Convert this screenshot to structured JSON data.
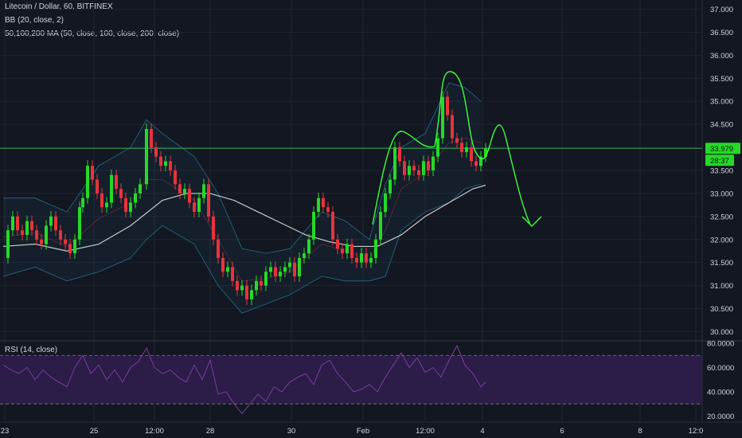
{
  "header": {
    "title": "Litecoin / Dollar, 60, BITFINEX",
    "bb_label": "BB (20, close, 2)",
    "ma_label": "50,100,200 MA (50, close, 100, close, 200, close)",
    "rsi_label": "RSI (14, close)"
  },
  "colors": {
    "background": "#131722",
    "grid": "#1f2433",
    "bullish": "#26d926",
    "bearish": "#e8333c",
    "price_line": "#34a853",
    "price_badge": "#26d926",
    "drawing": "#3dff3d",
    "ma": "#c9c9c9",
    "rsi": "#7b3d9e",
    "rsi_band": "#2b1c48"
  },
  "price_badge": {
    "price": "33.979",
    "countdown": "28:37"
  },
  "chart_data": [
    {
      "type": "candlestick",
      "title": "Litecoin / Dollar, 60, BITFINEX",
      "ylim": [
        29.8,
        37.2
      ],
      "y_ticks": [
        "37.000",
        "36.500",
        "36.000",
        "35.500",
        "35.000",
        "34.500",
        "34.000",
        "33.500",
        "33.000",
        "32.500",
        "32.000",
        "31.500",
        "31.000",
        "30.500",
        "30.000"
      ],
      "x_ticks": [
        "23",
        "25",
        "12:00",
        "28",
        "30",
        "Feb",
        "12:00",
        "4",
        "6",
        "8",
        "12:0"
      ],
      "last_price": 33.979,
      "series": [
        {
          "name": "Litecoin / Dollar, 60, BITFINEX",
          "kind": "close",
          "x": [
            0,
            6,
            12,
            18,
            24,
            30,
            36,
            42,
            48,
            54,
            60,
            66,
            72,
            78,
            84,
            90,
            96,
            100,
            106,
            112,
            118,
            124,
            130,
            136,
            142,
            148,
            154,
            160,
            166,
            172,
            180,
            186,
            192,
            198,
            204,
            210,
            216,
            222,
            228,
            234,
            240,
            246,
            252,
            258,
            264,
            270,
            276,
            282,
            288,
            294,
            300,
            306,
            312,
            318,
            324,
            330,
            336,
            342,
            348,
            354,
            360,
            366,
            372,
            378,
            384,
            390,
            396,
            402,
            408,
            414,
            420,
            426,
            432,
            438,
            444,
            450,
            456,
            462,
            468,
            474,
            480,
            486,
            492,
            498,
            504,
            510,
            516,
            522,
            528,
            534,
            540,
            546,
            552,
            558,
            564,
            570,
            576,
            582,
            588,
            594,
            600,
            606
          ],
          "close": [
            31.6,
            32.2,
            32.5,
            32.2,
            32.1,
            32.4,
            32.2,
            32.0,
            31.9,
            32.3,
            32.5,
            32.2,
            32.0,
            31.9,
            31.7,
            32.0,
            32.7,
            32.9,
            33.6,
            33.3,
            33.0,
            32.7,
            32.8,
            33.4,
            33.1,
            32.9,
            32.6,
            32.8,
            33.0,
            33.2,
            34.4,
            34.0,
            33.8,
            33.6,
            33.7,
            33.5,
            33.2,
            33.0,
            33.1,
            32.8,
            32.6,
            32.9,
            33.2,
            32.5,
            32.0,
            31.6,
            31.3,
            31.4,
            31.1,
            30.9,
            31.0,
            30.7,
            30.9,
            31.1,
            31.0,
            31.3,
            31.4,
            31.2,
            31.3,
            31.4,
            31.5,
            31.2,
            31.6,
            31.7,
            32.0,
            32.6,
            32.9,
            32.7,
            32.6,
            32.0,
            31.8,
            31.7,
            31.9,
            31.6,
            31.5,
            31.7,
            31.5,
            31.6,
            32.0,
            32.6,
            33.0,
            33.3,
            34.0,
            33.7,
            33.4,
            33.6,
            33.5,
            33.4,
            33.7,
            33.5,
            33.8,
            34.2,
            35.1,
            34.7,
            34.2,
            34.1,
            33.9,
            34.0,
            33.7,
            33.6,
            33.8,
            33.979
          ]
        },
        {
          "name": "BB (20, close, 2)",
          "kind": "bands",
          "x": [
            0,
            40,
            80,
            120,
            160,
            180,
            200,
            240,
            270,
            300,
            330,
            360,
            400,
            430,
            460,
            480,
            500,
            530,
            560,
            580,
            600
          ],
          "upper": [
            32.9,
            32.9,
            32.6,
            33.6,
            34.0,
            34.6,
            34.3,
            33.8,
            33.0,
            31.8,
            31.7,
            31.8,
            32.6,
            32.4,
            32.0,
            33.2,
            34.0,
            34.3,
            35.4,
            35.3,
            35.0
          ],
          "lower": [
            31.2,
            31.4,
            31.1,
            31.3,
            31.6,
            32.0,
            32.3,
            31.9,
            31.0,
            30.4,
            30.6,
            30.8,
            31.2,
            31.1,
            31.1,
            31.2,
            32.2,
            32.6,
            32.8,
            33.1,
            33.2
          ]
        },
        {
          "name": "50,100,200 MA (50, close, 100, close, 200, close)",
          "kind": "line",
          "x": [
            0,
            40,
            80,
            120,
            160,
            200,
            230,
            260,
            290,
            320,
            350,
            380,
            410,
            440,
            470,
            500,
            530,
            560,
            590,
            606
          ],
          "y": [
            31.85,
            31.9,
            31.75,
            31.9,
            32.3,
            32.85,
            33.0,
            33.0,
            32.85,
            32.6,
            32.35,
            32.1,
            31.95,
            31.85,
            31.85,
            32.1,
            32.5,
            32.8,
            33.1,
            33.18
          ]
        }
      ]
    },
    {
      "type": "line",
      "title": "RSI (14, close)",
      "ylim": [
        15,
        82
      ],
      "y_ticks": [
        "80.0000",
        "60.0000",
        "40.0000",
        "20.0000"
      ],
      "bands": [
        30,
        70
      ],
      "series": [
        {
          "name": "RSI (14, close)",
          "x": [
            0,
            10,
            20,
            30,
            40,
            50,
            60,
            70,
            80,
            90,
            100,
            110,
            120,
            130,
            140,
            150,
            160,
            170,
            180,
            190,
            200,
            210,
            220,
            230,
            240,
            250,
            260,
            270,
            280,
            290,
            300,
            310,
            320,
            330,
            340,
            350,
            360,
            370,
            380,
            390,
            400,
            410,
            420,
            430,
            440,
            450,
            460,
            470,
            480,
            490,
            500,
            510,
            520,
            530,
            540,
            550,
            560,
            570,
            580,
            590,
            600,
            606
          ],
          "y": [
            62,
            58,
            55,
            60,
            50,
            58,
            52,
            48,
            44,
            60,
            70,
            55,
            62,
            50,
            58,
            48,
            60,
            65,
            76,
            60,
            55,
            58,
            52,
            48,
            62,
            50,
            66,
            38,
            40,
            30,
            22,
            30,
            38,
            32,
            44,
            40,
            48,
            52,
            55,
            46,
            62,
            66,
            55,
            48,
            40,
            42,
            46,
            40,
            52,
            62,
            72,
            60,
            68,
            56,
            60,
            52,
            66,
            78,
            62,
            55,
            44,
            48
          ]
        }
      ]
    }
  ]
}
